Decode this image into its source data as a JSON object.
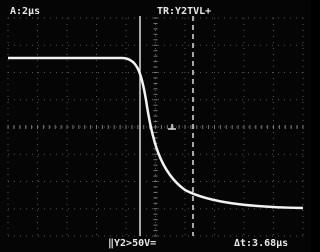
{
  "screen": {
    "timebase": "A:2µs",
    "trigger": "TR:Y2TVL+",
    "cursor_mode": "‖Y2>50V=",
    "delta_t": "Δt:3.68µs"
  }
}
